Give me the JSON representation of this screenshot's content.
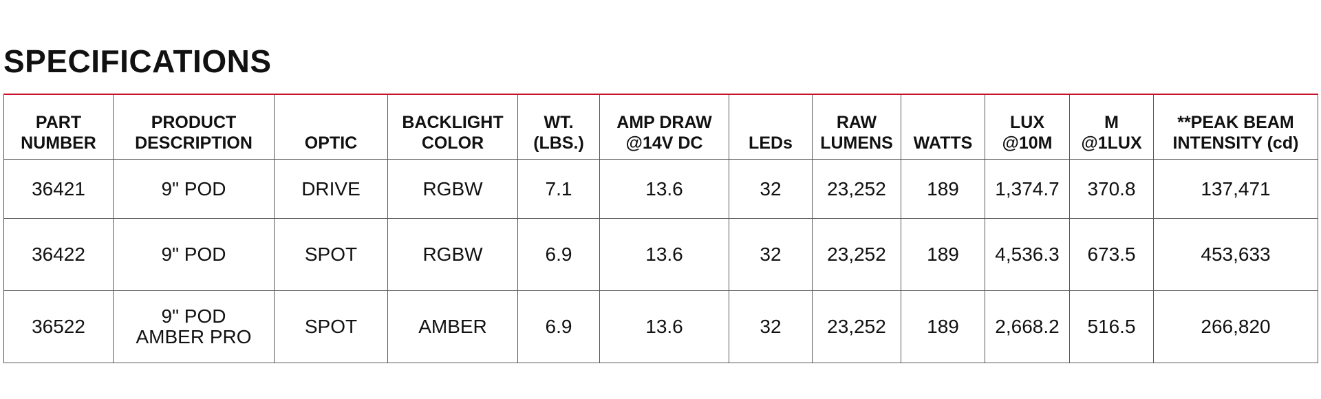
{
  "title": "SPECIFICATIONS",
  "table": {
    "header": [
      [
        "PART",
        "NUMBER"
      ],
      [
        "PRODUCT",
        "DESCRIPTION"
      ],
      [
        "OPTIC"
      ],
      [
        "BACKLIGHT",
        "COLOR"
      ],
      [
        "WT.",
        "(LBS.)"
      ],
      [
        "AMP DRAW",
        "@14V DC"
      ],
      [
        "LEDs"
      ],
      [
        "RAW",
        "LUMENS"
      ],
      [
        "WATTS"
      ],
      [
        "LUX",
        "@10M"
      ],
      [
        "M",
        "@1LUX"
      ],
      [
        "**PEAK BEAM",
        "INTENSITY (cd)"
      ]
    ],
    "rows": [
      [
        "36421",
        "9\" POD",
        "DRIVE",
        "RGBW",
        "7.1",
        "13.6",
        "32",
        "23,252",
        "189",
        "1,374.7",
        "370.8",
        "137,471"
      ],
      [
        "36422",
        "9\" POD",
        "SPOT",
        "RGBW",
        "6.9",
        "13.6",
        "32",
        "23,252",
        "189",
        "4,536.3",
        "673.5",
        "453,633"
      ],
      [
        "36522",
        [
          "9\" POD",
          "AMBER PRO"
        ],
        "SPOT",
        "AMBER",
        "6.9",
        "13.6",
        "32",
        "23,252",
        "189",
        "2,668.2",
        "516.5",
        "266,820"
      ]
    ]
  }
}
